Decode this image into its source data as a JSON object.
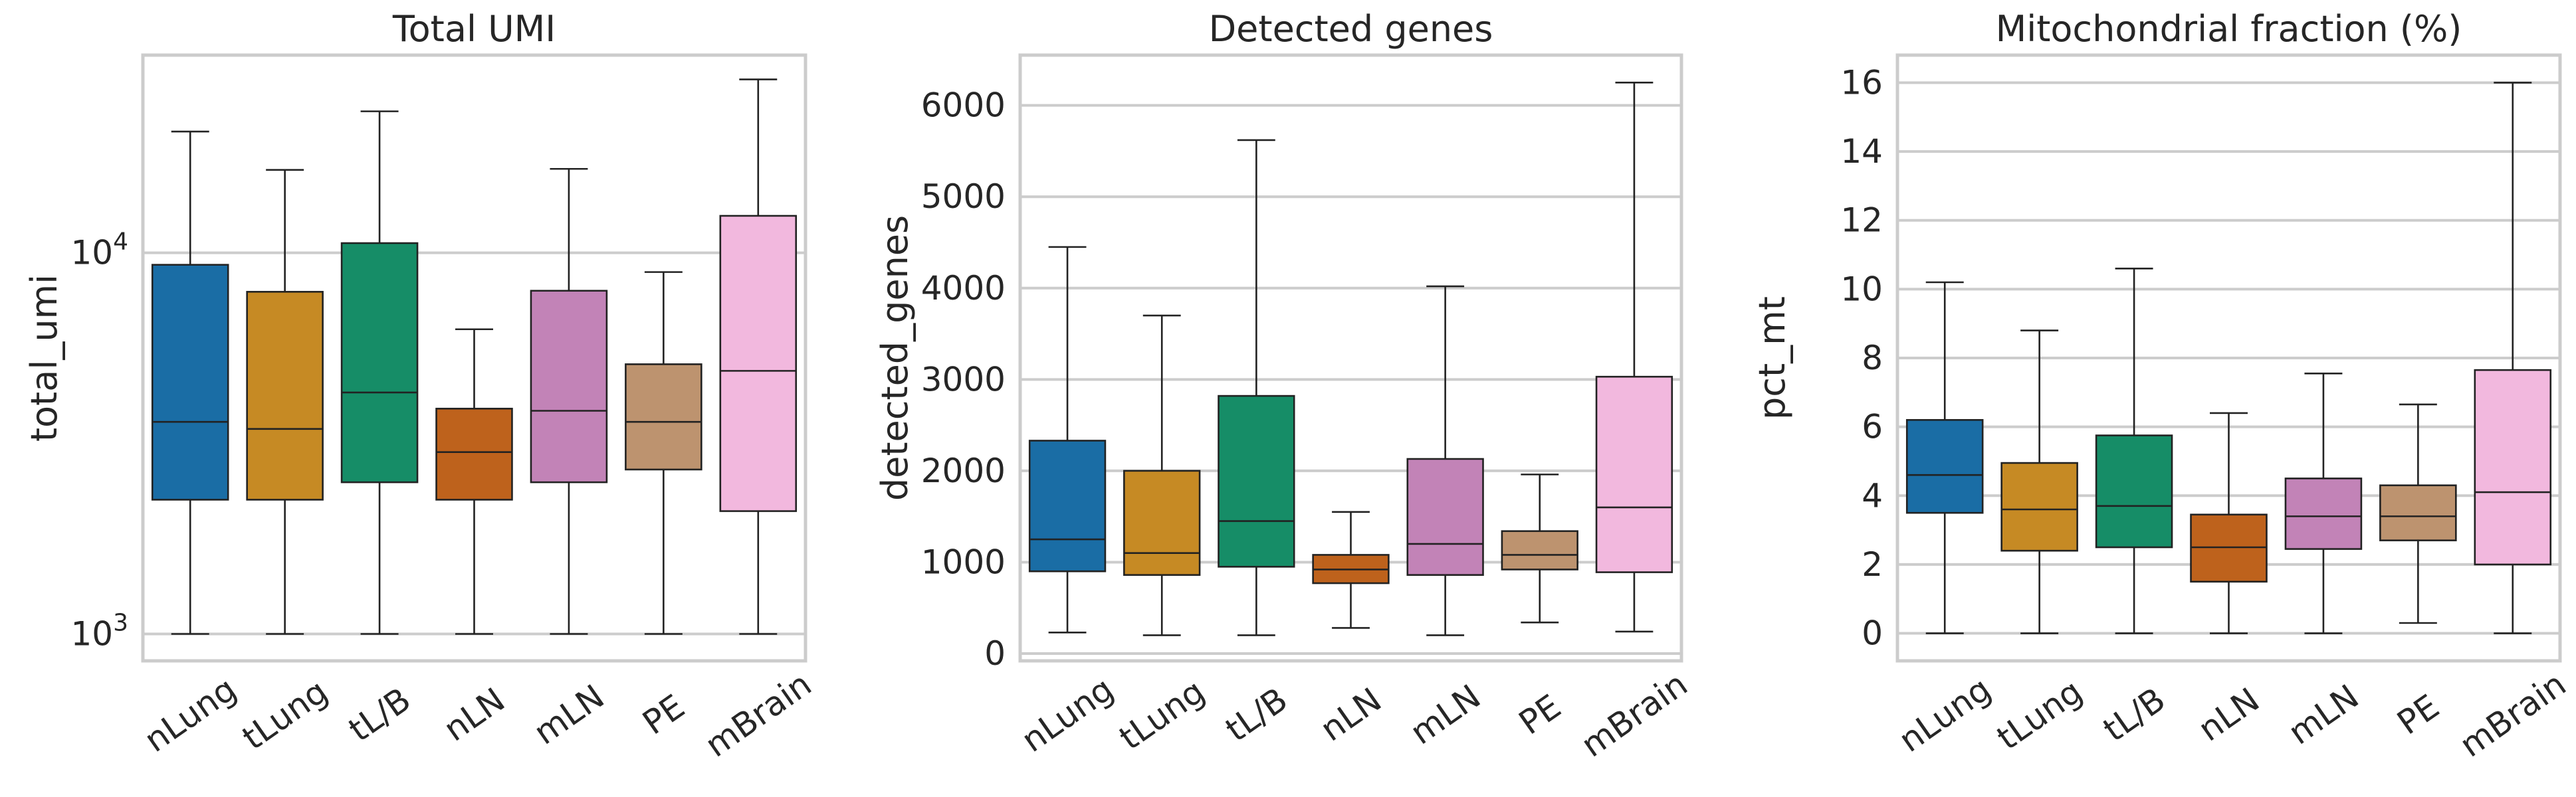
{
  "chart_data": [
    {
      "type": "box",
      "title": "Total UMI",
      "ylabel": "total_umi",
      "yscale": "log",
      "ylim": [
        850,
        33000
      ],
      "yticks": [
        {
          "value": 1000,
          "base": "10",
          "exp": "3"
        },
        {
          "value": 10000,
          "base": "10",
          "exp": "4"
        }
      ],
      "categories": [
        "nLung",
        "tLung",
        "tL/B",
        "nLN",
        "mLN",
        "PE",
        "mBrain"
      ],
      "boxes": [
        {
          "min": 1000,
          "q1": 2250,
          "median": 3600,
          "q3": 9300,
          "max": 20800
        },
        {
          "min": 1000,
          "q1": 2250,
          "median": 3450,
          "q3": 7900,
          "max": 16500
        },
        {
          "min": 1000,
          "q1": 2500,
          "median": 4300,
          "q3": 10600,
          "max": 23500
        },
        {
          "min": 1000,
          "q1": 2250,
          "median": 3000,
          "q3": 3900,
          "max": 6300
        },
        {
          "min": 1000,
          "q1": 2500,
          "median": 3850,
          "q3": 7950,
          "max": 16600
        },
        {
          "min": 1000,
          "q1": 2700,
          "median": 3600,
          "q3": 5100,
          "max": 8900
        },
        {
          "min": 1000,
          "q1": 2100,
          "median": 4900,
          "q3": 12500,
          "max": 28500
        }
      ]
    },
    {
      "type": "box",
      "title": "Detected genes",
      "ylabel": "detected_genes",
      "yscale": "linear",
      "ylim": [
        -80,
        6550
      ],
      "yticks": [
        0,
        1000,
        2000,
        3000,
        4000,
        5000,
        6000
      ],
      "categories": [
        "nLung",
        "tLung",
        "tL/B",
        "nLN",
        "mLN",
        "PE",
        "mBrain"
      ],
      "boxes": [
        {
          "min": 230,
          "q1": 900,
          "median": 1250,
          "q3": 2330,
          "max": 4450
        },
        {
          "min": 200,
          "q1": 860,
          "median": 1100,
          "q3": 2000,
          "max": 3700
        },
        {
          "min": 200,
          "q1": 950,
          "median": 1450,
          "q3": 2820,
          "max": 5620
        },
        {
          "min": 280,
          "q1": 770,
          "median": 920,
          "q3": 1080,
          "max": 1550
        },
        {
          "min": 200,
          "q1": 860,
          "median": 1200,
          "q3": 2130,
          "max": 4020
        },
        {
          "min": 340,
          "q1": 920,
          "median": 1080,
          "q3": 1340,
          "max": 1960
        },
        {
          "min": 240,
          "q1": 890,
          "median": 1600,
          "q3": 3030,
          "max": 6250
        }
      ]
    },
    {
      "type": "box",
      "title": "Mitochondrial fraction (%)",
      "ylabel": "pct_mt",
      "yscale": "linear",
      "ylim": [
        -0.8,
        16.8
      ],
      "yticks": [
        0,
        2,
        4,
        6,
        8,
        10,
        12,
        14,
        16
      ],
      "categories": [
        "nLung",
        "tLung",
        "tL/B",
        "nLN",
        "mLN",
        "PE",
        "mBrain"
      ],
      "boxes": [
        {
          "min": 0,
          "q1": 3.5,
          "median": 4.6,
          "q3": 6.2,
          "max": 10.2
        },
        {
          "min": 0,
          "q1": 2.4,
          "median": 3.6,
          "q3": 4.95,
          "max": 8.8
        },
        {
          "min": 0,
          "q1": 2.5,
          "median": 3.7,
          "q3": 5.75,
          "max": 10.6
        },
        {
          "min": 0,
          "q1": 1.5,
          "median": 2.5,
          "q3": 3.45,
          "max": 6.4
        },
        {
          "min": 0,
          "q1": 2.45,
          "median": 3.4,
          "q3": 4.5,
          "max": 7.55
        },
        {
          "min": 0.3,
          "q1": 2.7,
          "median": 3.4,
          "q3": 4.3,
          "max": 6.65
        },
        {
          "min": 0,
          "q1": 2.0,
          "median": 4.1,
          "q3": 7.65,
          "max": 16.0
        }
      ]
    }
  ],
  "colors": [
    "#1a6da5",
    "#c68a24",
    "#168d67",
    "#be621c",
    "#c283b7",
    "#bd936f",
    "#f2b8de"
  ]
}
